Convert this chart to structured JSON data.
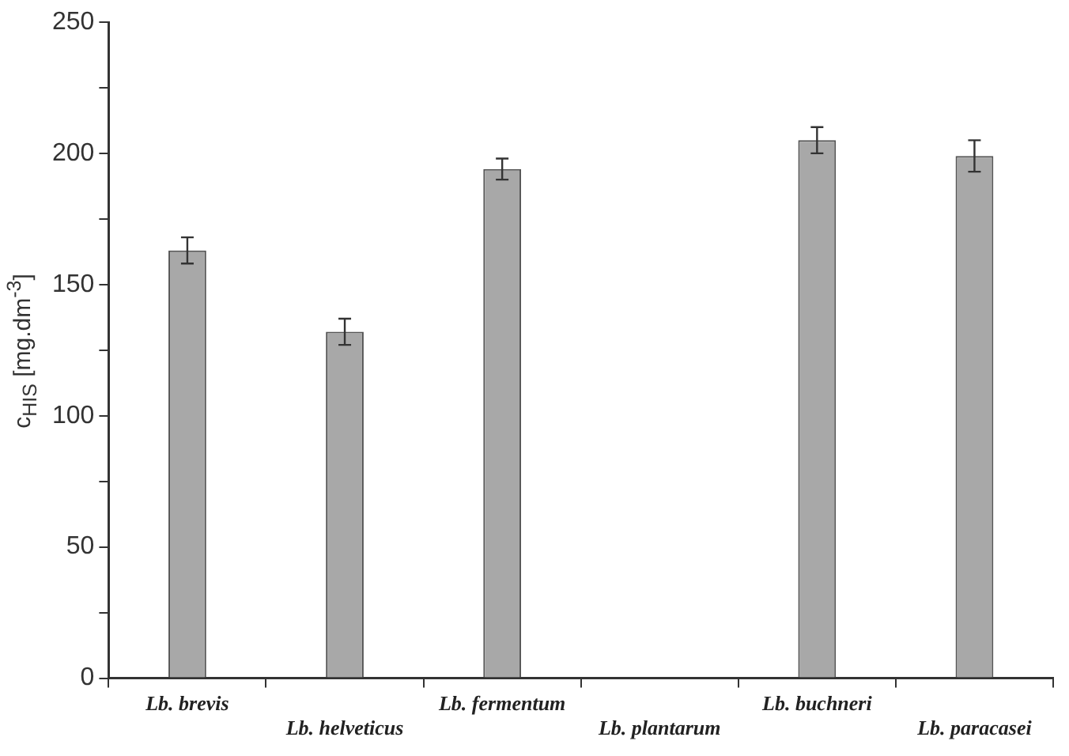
{
  "chart_data": {
    "type": "bar",
    "ylabel": "c$_{HIS}$ [mg.dm$^{-3}$]",
    "categories": [
      "Lb. brevis",
      "Lb. helveticus",
      "Lb. fermentum",
      "Lb. plantarum",
      "Lb. buchneri",
      "Lb. paracasei"
    ],
    "values": [
      163,
      132,
      194,
      null,
      205,
      199
    ],
    "errors": [
      5,
      5,
      4,
      null,
      5,
      6
    ],
    "color": "#a8a8a8",
    "ylim": [
      0,
      250
    ],
    "yticks": [
      0,
      {
        "value": 25,
        "label": null
      },
      50,
      {
        "value": 75,
        "label": null
      },
      100,
      {
        "value": 125,
        "label": null
      },
      150,
      {
        "value": 175,
        "label": null
      },
      200,
      {
        "value": 225,
        "label": null
      },
      250
    ],
    "grid": false,
    "legend": false
  }
}
